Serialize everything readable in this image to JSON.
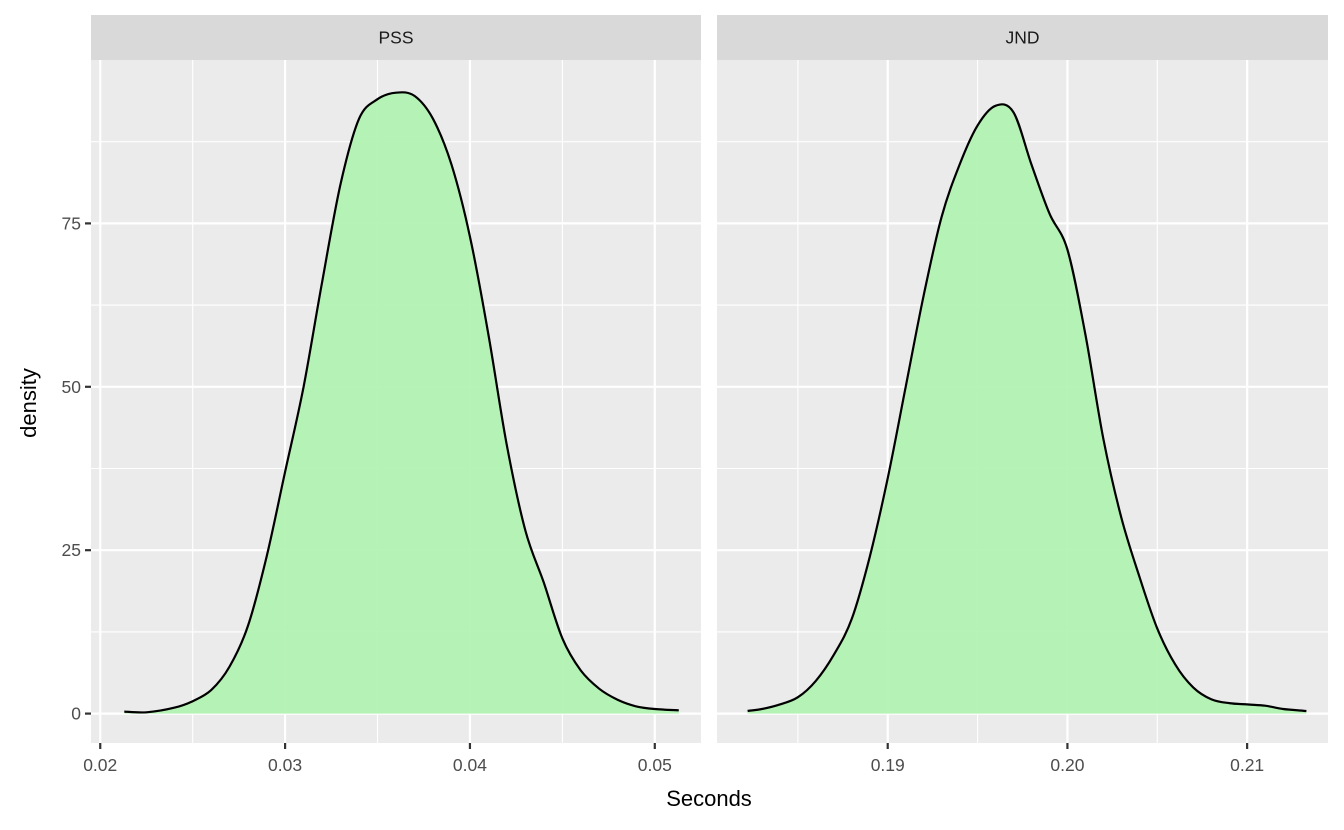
{
  "chart_data": {
    "type": "area",
    "xlabel": "Seconds",
    "ylabel": "density",
    "ylim": [
      -4.5,
      100
    ],
    "y_ticks": [
      0,
      25,
      50,
      75
    ],
    "y_tick_labels": [
      "0",
      "25",
      "50",
      "75"
    ],
    "fill_color": "#b2f2b2",
    "line_color": "#000000",
    "panel_background": "#ebebeb",
    "strip_background": "#d9d9d9",
    "grid": true,
    "panels": [
      {
        "strip_label": "PSS",
        "xlim": [
          0.0195,
          0.0525
        ],
        "x_ticks": [
          0.02,
          0.03,
          0.04,
          0.05
        ],
        "x_tick_labels": [
          "0.02",
          "0.03",
          "0.04",
          "0.05"
        ],
        "x": [
          0.0213,
          0.0225,
          0.024,
          0.025,
          0.026,
          0.027,
          0.028,
          0.029,
          0.03,
          0.031,
          0.032,
          0.033,
          0.034,
          0.035,
          0.036,
          0.037,
          0.038,
          0.039,
          0.04,
          0.041,
          0.042,
          0.043,
          0.044,
          0.045,
          0.046,
          0.047,
          0.048,
          0.049,
          0.05,
          0.0513
        ],
        "density": [
          0.3,
          0.2,
          0.9,
          1.9,
          3.6,
          7.2,
          13.5,
          24.0,
          37.0,
          50.0,
          66.0,
          81.0,
          91.0,
          94.0,
          95.0,
          94.5,
          91.0,
          84.0,
          73.0,
          58.0,
          41.0,
          28.0,
          20.0,
          11.5,
          6.6,
          3.8,
          2.1,
          1.1,
          0.7,
          0.5
        ]
      },
      {
        "strip_label": "JND",
        "xlim": [
          0.1805,
          0.2145
        ],
        "x_ticks": [
          0.19,
          0.2,
          0.21
        ],
        "x_tick_labels": [
          "0.19",
          "0.20",
          "0.21"
        ],
        "x": [
          0.1822,
          0.183,
          0.184,
          0.185,
          0.186,
          0.187,
          0.188,
          0.189,
          0.19,
          0.191,
          0.192,
          0.193,
          0.194,
          0.195,
          0.196,
          0.197,
          0.198,
          0.199,
          0.2,
          0.201,
          0.202,
          0.203,
          0.204,
          0.205,
          0.206,
          0.207,
          0.208,
          0.209,
          0.21,
          0.211,
          0.212,
          0.2133
        ],
        "density": [
          0.4,
          0.7,
          1.4,
          2.5,
          5.0,
          9.0,
          14.5,
          24.0,
          36.0,
          50.0,
          64.0,
          76.0,
          84.0,
          90.0,
          93.0,
          92.0,
          84.0,
          76.5,
          71.0,
          58.0,
          42.0,
          30.0,
          21.0,
          13.0,
          7.5,
          4.0,
          2.2,
          1.6,
          1.4,
          1.2,
          0.7,
          0.4
        ]
      }
    ]
  }
}
